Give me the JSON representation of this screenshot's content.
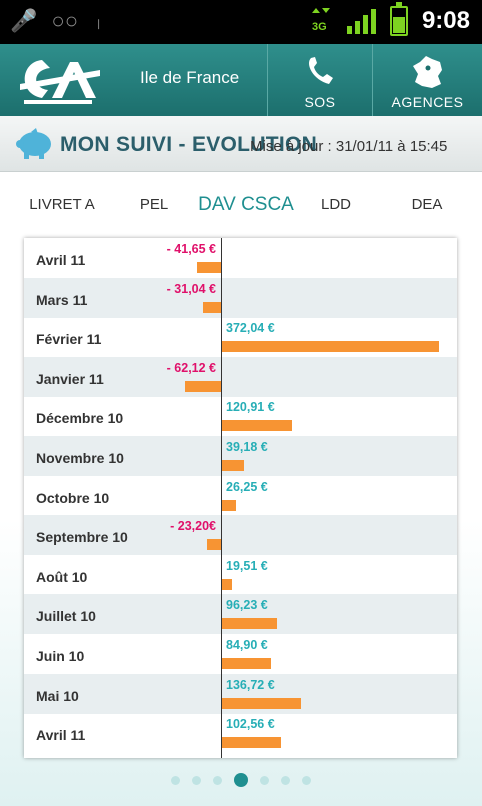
{
  "status_bar": {
    "time": "9:08",
    "network": "3G"
  },
  "header": {
    "region": "Ile de France",
    "sos_label": "SOS",
    "agences_label": "AGENCES"
  },
  "title_bar": {
    "title": "MON SUIVI - EVOLUTION",
    "update": "Mise à jour : 31/01/11 à 15:45"
  },
  "tabs": [
    {
      "label": "LIVRET A",
      "active": false
    },
    {
      "label": "PEL",
      "active": false
    },
    {
      "label": "DAV CSCA",
      "active": true
    },
    {
      "label": "LDD",
      "active": false
    },
    {
      "label": "DEA",
      "active": false
    }
  ],
  "colors": {
    "positive": "#27aeb6",
    "negative": "#e0106a",
    "bar": "#f79433",
    "header": "#1c6f6d"
  },
  "chart_data": {
    "type": "bar",
    "categories": [
      "Avril 11",
      "Mars 11",
      "Février 11",
      "Janvier 11",
      "Décembre 10",
      "Novembre 10",
      "Octobre 10",
      "Septembre 10",
      "Août 10",
      "Juillet 10",
      "Juin 10",
      "Mai 10",
      "Avril 11"
    ],
    "values": [
      -41.65,
      -31.04,
      372.04,
      -62.12,
      120.91,
      39.18,
      26.25,
      -23.2,
      19.51,
      96.23,
      84.9,
      136.72,
      102.56
    ],
    "value_labels": [
      "- 41,65 €",
      "- 31,04 €",
      "372,04 €",
      "- 62,12 €",
      "120,91 €",
      "39,18 €",
      "26,25 €",
      "- 23,20€",
      "19,51 €",
      "96,23 €",
      "84,90 €",
      "136,72 €",
      "102,56 €"
    ]
  },
  "pagination": {
    "pages": 7,
    "current": 4
  }
}
